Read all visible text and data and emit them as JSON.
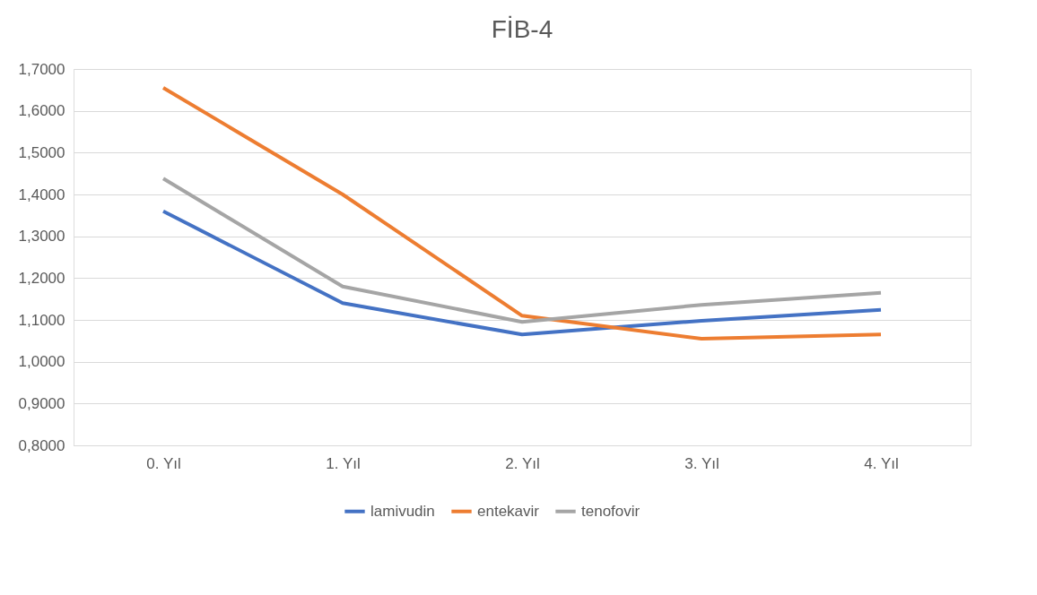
{
  "chart_data": {
    "type": "line",
    "title": "FİB-4",
    "categories": [
      "0. Yıl",
      "1. Yıl",
      "2. Yıl",
      "3. Yıl",
      "4. Yıl"
    ],
    "series": [
      {
        "name": "lamivudin",
        "color": "#4472c4",
        "values": [
          1.36,
          1.14,
          1.065,
          1.098,
          1.124
        ]
      },
      {
        "name": "entekavir",
        "color": "#ed7d31",
        "values": [
          1.655,
          1.4,
          1.11,
          1.055,
          1.065
        ]
      },
      {
        "name": "tenofovir",
        "color": "#a5a5a5",
        "values": [
          1.438,
          1.18,
          1.095,
          1.136,
          1.165
        ]
      }
    ],
    "ylim": [
      0.8,
      1.7
    ],
    "yticks": [
      {
        "value": 0.8,
        "label": "0,8000"
      },
      {
        "value": 0.9,
        "label": "0,9000"
      },
      {
        "value": 1.0,
        "label": "1,0000"
      },
      {
        "value": 1.1,
        "label": "1,1000"
      },
      {
        "value": 1.2,
        "label": "1,2000"
      },
      {
        "value": 1.3,
        "label": "1,3000"
      },
      {
        "value": 1.4,
        "label": "1,4000"
      },
      {
        "value": 1.5,
        "label": "1,5000"
      },
      {
        "value": 1.6,
        "label": "1,6000"
      },
      {
        "value": 1.7,
        "label": "1,7000"
      }
    ],
    "grid": "y",
    "legend": "bottom",
    "marker": "none",
    "line_style": "solid"
  }
}
